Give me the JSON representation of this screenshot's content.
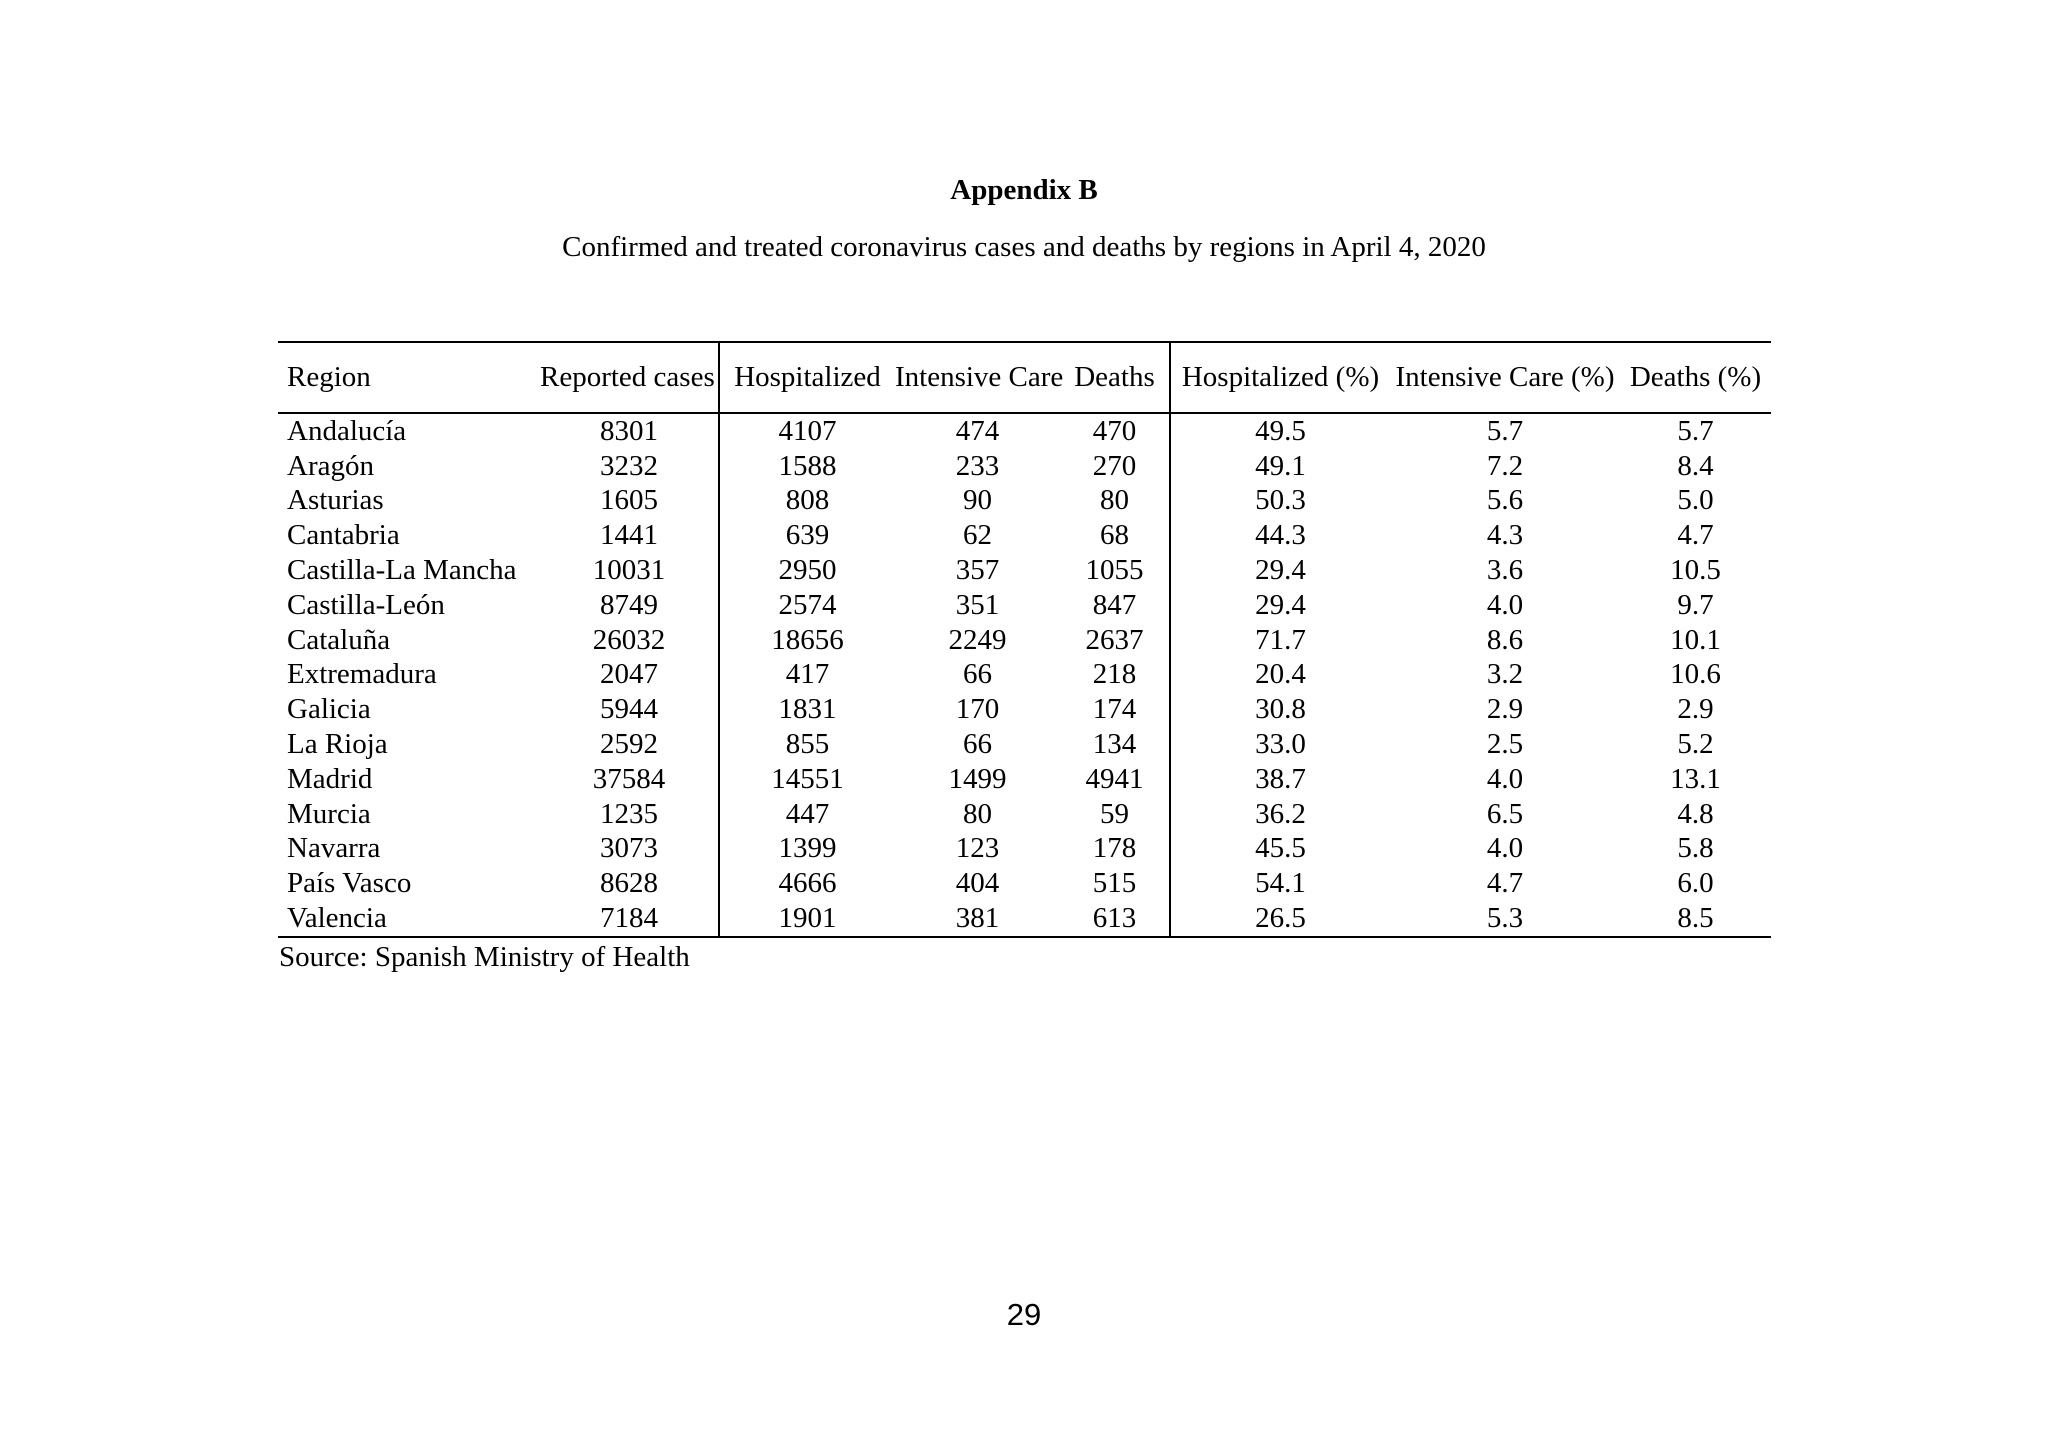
{
  "page": {
    "title": "Appendix B",
    "subtitle": "Confirmed and treated coronavirus cases and deaths by regions in April 4, 2020",
    "source": "Source: Spanish Ministry of Health",
    "page_number": "29"
  },
  "table": {
    "columns": [
      "Region",
      "Reported cases",
      "Hospitalized",
      "Intensive Care",
      "Deaths",
      "Hospitalized (%)",
      "Intensive Care (%)",
      "Deaths (%)"
    ],
    "rows": [
      [
        "Andalucía",
        "8301",
        "4107",
        "474",
        "470",
        "49.5",
        "5.7",
        "5.7"
      ],
      [
        "Aragón",
        "3232",
        "1588",
        "233",
        "270",
        "49.1",
        "7.2",
        "8.4"
      ],
      [
        "Asturias",
        "1605",
        "808",
        "90",
        "80",
        "50.3",
        "5.6",
        "5.0"
      ],
      [
        "Cantabria",
        "1441",
        "639",
        "62",
        "68",
        "44.3",
        "4.3",
        "4.7"
      ],
      [
        "Castilla-La Mancha",
        "10031",
        "2950",
        "357",
        "1055",
        "29.4",
        "3.6",
        "10.5"
      ],
      [
        "Castilla-León",
        "8749",
        "2574",
        "351",
        "847",
        "29.4",
        "4.0",
        "9.7"
      ],
      [
        "Cataluña",
        "26032",
        "18656",
        "2249",
        "2637",
        "71.7",
        "8.6",
        "10.1"
      ],
      [
        "Extremadura",
        "2047",
        "417",
        "66",
        "218",
        "20.4",
        "3.2",
        "10.6"
      ],
      [
        "Galicia",
        "5944",
        "1831",
        "170",
        "174",
        "30.8",
        "2.9",
        "2.9"
      ],
      [
        "La Rioja",
        "2592",
        "855",
        "66",
        "134",
        "33.0",
        "2.5",
        "5.2"
      ],
      [
        "Madrid",
        "37584",
        "14551",
        "1499",
        "4941",
        "38.7",
        "4.0",
        "13.1"
      ],
      [
        "Murcia",
        "1235",
        "447",
        "80",
        "59",
        "36.2",
        "6.5",
        "4.8"
      ],
      [
        "Navarra",
        "3073",
        "1399",
        "123",
        "178",
        "45.5",
        "4.0",
        "5.8"
      ],
      [
        "País Vasco",
        "8628",
        "4666",
        "404",
        "515",
        "54.1",
        "4.7",
        "6.0"
      ],
      [
        "Valencia",
        "7184",
        "1901",
        "381",
        "613",
        "26.5",
        "5.3",
        "8.5"
      ]
    ]
  }
}
